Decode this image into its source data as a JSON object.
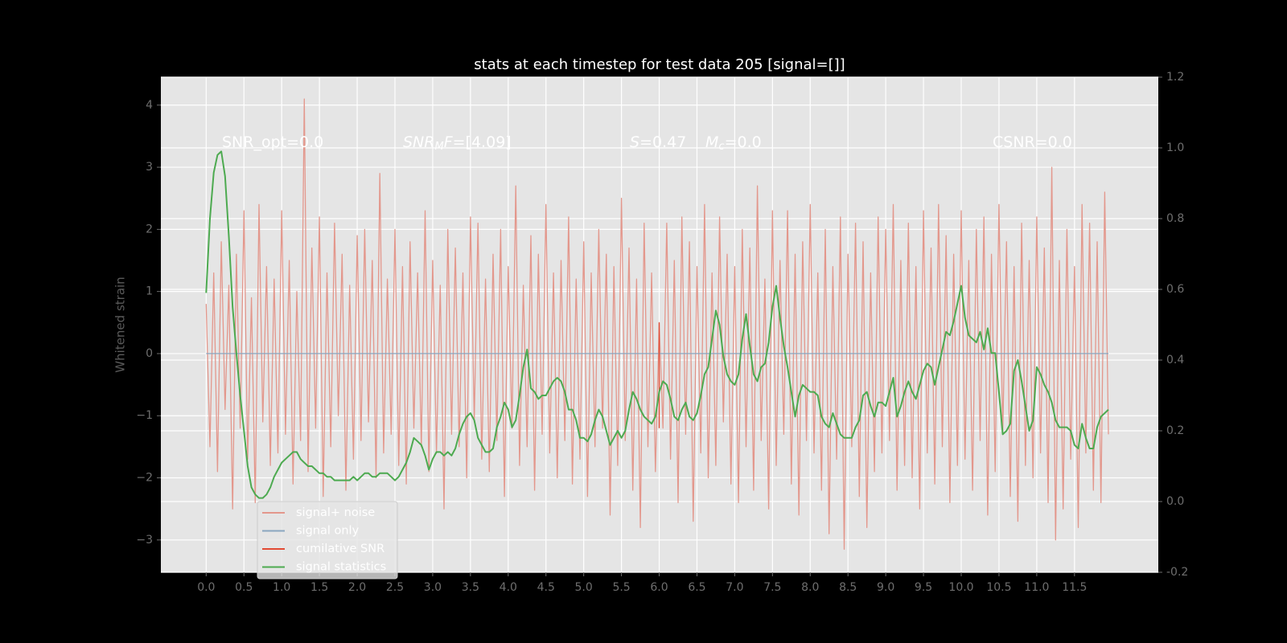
{
  "chart_data": {
    "type": "line",
    "title": "stats at each timestep for test data 205 [signal=[]]",
    "ylabel": "Whitened strain",
    "xlim": [
      -0.6,
      12.61
    ],
    "ylim": [
      -3.52,
      4.45
    ],
    "y2lim": [
      -0.2,
      1.2
    ],
    "xticks": [
      {
        "value": 0,
        "label": "0.0"
      },
      0.5,
      {
        "value": 1,
        "label": "1.0"
      },
      1.5,
      {
        "value": 2,
        "label": "2.0"
      },
      2.5,
      {
        "value": 3,
        "label": "3.0"
      },
      3.5,
      {
        "value": 4,
        "label": "4.0"
      },
      4.5,
      {
        "value": 5,
        "label": "5.0"
      },
      5.5,
      {
        "value": 6,
        "label": "6.0"
      },
      6.5,
      {
        "value": 7,
        "label": "7.0"
      },
      7.5,
      {
        "value": 8,
        "label": "8.0"
      },
      8.5,
      {
        "value": 9,
        "label": "9.0"
      },
      9.5,
      {
        "value": 10,
        "label": "10.0"
      },
      10.5,
      {
        "value": 11,
        "label": "11.0"
      },
      11.5
    ],
    "yticks": [
      {
        "value": -3,
        "label": "−3"
      },
      {
        "value": -2,
        "label": "−2"
      },
      {
        "value": -1,
        "label": "−1"
      },
      0,
      1,
      2,
      3,
      4
    ],
    "y2ticks": [
      -0.2,
      {
        "value": 0,
        "label": "0.0"
      },
      0.2,
      0.4,
      0.6,
      0.8,
      {
        "value": 1,
        "label": "1.0"
      },
      1.2
    ],
    "grid": true,
    "legend": "lower left",
    "annotations": [
      {
        "parts": [
          {
            "text": "SNR_opt=0.0"
          }
        ]
      },
      {
        "parts": [
          {
            "text": "SNR",
            "style": "italic"
          },
          {
            "text": "M",
            "style": "sub"
          },
          {
            "text": "F",
            "style": "italic"
          },
          {
            "text": "=[4.09]"
          }
        ]
      },
      {
        "parts": [
          {
            "text": "S",
            "style": "italic"
          },
          {
            "text": "=0.47"
          }
        ]
      },
      {
        "parts": [
          {
            "text": "M",
            "style": "italic"
          },
          {
            "text": "c",
            "style": "sub"
          },
          {
            "text": "=0.0"
          }
        ]
      },
      {
        "parts": [
          {
            "text": "CSNR=0.0"
          }
        ]
      }
    ],
    "x": [
      0,
      0.05,
      0.1,
      0.15,
      0.2,
      0.25,
      0.3,
      0.35,
      0.4,
      0.45,
      0.5,
      0.55,
      0.6,
      0.65,
      0.7,
      0.75,
      0.8,
      0.85,
      0.9,
      0.95,
      1,
      1.05,
      1.1,
      1.15,
      1.2,
      1.25,
      1.3,
      1.35,
      1.4,
      1.45,
      1.5,
      1.55,
      1.6,
      1.65,
      1.7,
      1.75,
      1.8,
      1.85,
      1.9,
      1.95,
      2,
      2.05,
      2.1,
      2.15,
      2.2,
      2.25,
      2.3,
      2.35,
      2.4,
      2.45,
      2.5,
      2.55,
      2.6,
      2.65,
      2.7,
      2.75,
      2.8,
      2.85,
      2.9,
      2.95,
      3,
      3.05,
      3.1,
      3.15,
      3.2,
      3.25,
      3.3,
      3.35,
      3.4,
      3.45,
      3.5,
      3.55,
      3.6,
      3.65,
      3.7,
      3.75,
      3.8,
      3.85,
      3.9,
      3.95,
      4,
      4.05,
      4.1,
      4.15,
      4.2,
      4.25,
      4.3,
      4.35,
      4.4,
      4.45,
      4.5,
      4.55,
      4.6,
      4.65,
      4.7,
      4.75,
      4.8,
      4.85,
      4.9,
      4.95,
      5,
      5.05,
      5.1,
      5.15,
      5.2,
      5.25,
      5.3,
      5.35,
      5.4,
      5.45,
      5.5,
      5.55,
      5.6,
      5.65,
      5.7,
      5.75,
      5.8,
      5.85,
      5.9,
      5.95,
      6,
      6.05,
      6.1,
      6.15,
      6.2,
      6.25,
      6.3,
      6.35,
      6.4,
      6.45,
      6.5,
      6.55,
      6.6,
      6.65,
      6.7,
      6.75,
      6.8,
      6.85,
      6.9,
      6.95,
      7,
      7.05,
      7.1,
      7.15,
      7.2,
      7.25,
      7.3,
      7.35,
      7.4,
      7.45,
      7.5,
      7.55,
      7.6,
      7.65,
      7.7,
      7.75,
      7.8,
      7.85,
      7.9,
      7.95,
      8,
      8.05,
      8.1,
      8.15,
      8.2,
      8.25,
      8.3,
      8.35,
      8.4,
      8.45,
      8.5,
      8.55,
      8.6,
      8.65,
      8.7,
      8.75,
      8.8,
      8.85,
      8.9,
      8.95,
      9,
      9.05,
      9.1,
      9.15,
      9.2,
      9.25,
      9.3,
      9.35,
      9.4,
      9.45,
      9.5,
      9.55,
      9.6,
      9.65,
      9.7,
      9.75,
      9.8,
      9.85,
      9.9,
      9.95,
      10,
      10.05,
      10.1,
      10.15,
      10.2,
      10.25,
      10.3,
      10.35,
      10.4,
      10.45,
      10.5,
      10.55,
      10.6,
      10.65,
      10.7,
      10.75,
      10.8,
      10.85,
      10.9,
      10.95,
      11,
      11.05,
      11.1,
      11.15,
      11.2,
      11.25,
      11.3,
      11.35,
      11.4,
      11.45,
      11.5,
      11.55,
      11.6,
      11.65,
      11.7,
      11.75,
      11.8,
      11.85,
      11.9,
      11.95
    ],
    "series": [
      {
        "name": "signal+ noise",
        "color": "#e3978c",
        "values": [
          0.8,
          -1.5,
          1.3,
          -1.9,
          1.8,
          -0.9,
          1.1,
          -2.5,
          1.6,
          -1.2,
          2.3,
          -1.7,
          0.9,
          -2.4,
          2.4,
          -1.1,
          1.4,
          -1.8,
          1.2,
          -1.6,
          2.3,
          -1.3,
          1.5,
          -2.1,
          1.0,
          -1.4,
          4.1,
          -1.9,
          1.7,
          -1.2,
          2.2,
          -2.3,
          1.3,
          -1.5,
          2.1,
          -1.0,
          1.6,
          -2.2,
          1.1,
          -1.7,
          1.9,
          -1.4,
          2.0,
          -1.1,
          1.5,
          -2.0,
          2.9,
          -1.6,
          1.2,
          -1.3,
          2.0,
          -1.8,
          1.4,
          -2.1,
          1.8,
          -1.2,
          1.3,
          -1.5,
          2.3,
          -1.9,
          1.5,
          -1.6,
          1.1,
          -2.5,
          2.0,
          -1.3,
          1.7,
          -1.5,
          1.3,
          -2.0,
          2.2,
          -1.1,
          2.1,
          -1.7,
          1.2,
          -1.9,
          1.6,
          -1.4,
          2.0,
          -2.3,
          1.4,
          -1.2,
          2.7,
          -1.8,
          1.1,
          -1.5,
          1.9,
          -2.2,
          1.6,
          -1.3,
          2.4,
          -1.6,
          1.3,
          -2.0,
          1.5,
          -1.4,
          2.2,
          -2.1,
          1.2,
          -1.7,
          1.8,
          -2.3,
          1.3,
          -1.5,
          2.0,
          -1.2,
          1.6,
          -2.6,
          1.4,
          -1.8,
          2.5,
          -1.4,
          1.7,
          -2.2,
          1.2,
          -2.8,
          2.1,
          -1.5,
          1.3,
          -1.9,
          0.5,
          -1.2,
          2.1,
          -1.7,
          1.5,
          -2.4,
          2.2,
          -1.3,
          1.8,
          -2.7,
          1.4,
          -1.6,
          2.4,
          -2.0,
          1.3,
          -1.8,
          2.2,
          -1.1,
          1.6,
          -2.1,
          1.4,
          -2.4,
          2.0,
          -1.5,
          1.7,
          -2.2,
          2.7,
          -1.4,
          1.2,
          -2.5,
          2.3,
          -1.8,
          1.5,
          -1.3,
          2.3,
          -2.1,
          1.6,
          -2.6,
          1.8,
          -1.4,
          2.4,
          -1.6,
          1.3,
          -2.2,
          2.0,
          -2.9,
          1.4,
          -1.7,
          2.2,
          -3.15,
          1.6,
          -1.5,
          2.1,
          -2.3,
          1.8,
          -2.8,
          1.3,
          -1.9,
          2.2,
          -1.6,
          2.0,
          -1.4,
          2.4,
          -2.2,
          1.5,
          -1.8,
          2.1,
          -2.0,
          1.4,
          -2.5,
          2.3,
          -1.6,
          1.7,
          -2.1,
          2.4,
          -1.5,
          1.9,
          -2.4,
          1.6,
          -1.8,
          2.3,
          -1.7,
          1.5,
          -2.2,
          2.0,
          -1.4,
          2.2,
          -2.6,
          1.6,
          -1.9,
          2.4,
          -1.3,
          1.8,
          -2.3,
          1.4,
          -2.7,
          2.1,
          -1.8,
          1.5,
          -2.0,
          2.2,
          -1.6,
          1.7,
          -2.4,
          3.0,
          -3.0,
          1.5,
          -2.5,
          2.0,
          -1.7,
          1.4,
          -2.8,
          2.4,
          -1.6,
          2.1,
          -2.2,
          1.8,
          -2.4,
          2.6,
          -1.3
        ]
      },
      {
        "name": "signal only",
        "color": "#8aa6c0",
        "x": [
          0,
          11.95
        ],
        "values": [
          0,
          0
        ]
      },
      {
        "name": "cumilative SNR",
        "color": "#e24a33",
        "x": [
          6,
          6
        ],
        "values": [
          0.5,
          -1.2
        ]
      },
      {
        "name": "signal statistics",
        "color": "#4daa50",
        "axis": "y2",
        "values": [
          0.59,
          0.8,
          0.93,
          0.98,
          0.99,
          0.92,
          0.75,
          0.55,
          0.42,
          0.3,
          0.2,
          0.1,
          0.04,
          0.02,
          0.01,
          0.01,
          0.02,
          0.04,
          0.07,
          0.09,
          0.11,
          0.12,
          0.13,
          0.14,
          0.14,
          0.12,
          0.11,
          0.1,
          0.1,
          0.09,
          0.08,
          0.08,
          0.07,
          0.07,
          0.06,
          0.06,
          0.06,
          0.06,
          0.06,
          0.07,
          0.06,
          0.07,
          0.08,
          0.08,
          0.07,
          0.07,
          0.08,
          0.08,
          0.08,
          0.07,
          0.06,
          0.07,
          0.09,
          0.11,
          0.14,
          0.18,
          0.17,
          0.16,
          0.13,
          0.09,
          0.12,
          0.14,
          0.14,
          0.13,
          0.14,
          0.13,
          0.15,
          0.19,
          0.22,
          0.24,
          0.25,
          0.23,
          0.18,
          0.16,
          0.14,
          0.14,
          0.15,
          0.21,
          0.24,
          0.28,
          0.26,
          0.21,
          0.23,
          0.3,
          0.38,
          0.43,
          0.32,
          0.31,
          0.29,
          0.3,
          0.3,
          0.32,
          0.34,
          0.35,
          0.34,
          0.31,
          0.26,
          0.26,
          0.23,
          0.18,
          0.18,
          0.17,
          0.19,
          0.23,
          0.26,
          0.24,
          0.2,
          0.16,
          0.18,
          0.2,
          0.18,
          0.2,
          0.26,
          0.31,
          0.29,
          0.26,
          0.24,
          0.23,
          0.22,
          0.24,
          0.31,
          0.34,
          0.33,
          0.29,
          0.24,
          0.23,
          0.26,
          0.28,
          0.24,
          0.23,
          0.25,
          0.3,
          0.36,
          0.38,
          0.46,
          0.54,
          0.5,
          0.41,
          0.36,
          0.34,
          0.33,
          0.36,
          0.46,
          0.53,
          0.44,
          0.36,
          0.34,
          0.38,
          0.39,
          0.45,
          0.55,
          0.61,
          0.52,
          0.44,
          0.38,
          0.31,
          0.24,
          0.3,
          0.33,
          0.32,
          0.31,
          0.31,
          0.3,
          0.24,
          0.22,
          0.21,
          0.25,
          0.22,
          0.19,
          0.18,
          0.18,
          0.18,
          0.21,
          0.23,
          0.3,
          0.31,
          0.27,
          0.24,
          0.28,
          0.28,
          0.27,
          0.31,
          0.35,
          0.24,
          0.27,
          0.31,
          0.34,
          0.31,
          0.29,
          0.33,
          0.37,
          0.39,
          0.38,
          0.33,
          0.38,
          0.43,
          0.48,
          0.47,
          0.51,
          0.56,
          0.61,
          0.52,
          0.47,
          0.46,
          0.45,
          0.48,
          0.43,
          0.49,
          0.42,
          0.42,
          0.31,
          0.19,
          0.2,
          0.22,
          0.37,
          0.4,
          0.34,
          0.27,
          0.2,
          0.23,
          0.38,
          0.36,
          0.33,
          0.31,
          0.28,
          0.23,
          0.21,
          0.21,
          0.21,
          0.2,
          0.16,
          0.15,
          0.22,
          0.18,
          0.15,
          0.15,
          0.21,
          0.24,
          0.25,
          0.26
        ]
      }
    ]
  }
}
